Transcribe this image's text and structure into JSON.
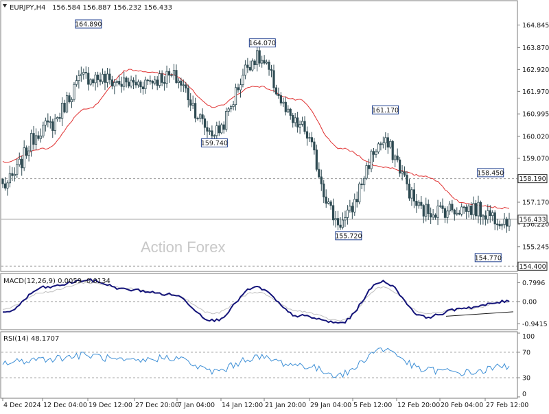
{
  "header": {
    "symbol": "EURJPY,H4",
    "ohlc": "156.584 156.887 156.232 156.433"
  },
  "watermark": "Action Forex",
  "colors": {
    "candles": "#2e4a52",
    "ma": "#e03030",
    "macd": "#14147a",
    "macd_signal": "#c0c0c0",
    "rsi": "#3d8fd6",
    "grid": "#9a9a9a",
    "frame": "#7a7a7a",
    "label_border": "#1f3f8f"
  },
  "chart_data": [
    {
      "type": "candlestick",
      "panel": "price",
      "ylim": [
        154.29,
        165.81
      ],
      "y_ticks": [
        "164.845",
        "163.870",
        "162.920",
        "161.970",
        "160.995",
        "160.020",
        "159.070",
        "158.190",
        "157.170",
        "156.220",
        "155.245",
        "154.400"
      ],
      "x_ticks": [
        "4 Dec 2024",
        "12 Dec 04:00",
        "19 Dec 12:00",
        "27 Dec 20:00",
        "7 Jan 04:00",
        "14 Jan 12:00",
        "21 Jan 20:00",
        "29 Jan 04:00",
        "5 Feb 12:00",
        "12 Feb 20:00",
        "20 Feb 04:00",
        "27 Feb 12:00"
      ],
      "pivot_points": [
        {
          "time": "4 Dec 2024",
          "close": 157.9
        },
        {
          "time": "12 Dec 04:00",
          "close": 160.4
        },
        {
          "time": "19 Dec 12:00",
          "close": 162.6
        },
        {
          "time": "27 Dec 20:00",
          "close": 162.3
        },
        {
          "time": "7 Jan 04:00",
          "close": 162.6
        },
        {
          "time": "14 Jan 12:00",
          "close": 160.2
        },
        {
          "time": "21 Jan 20:00",
          "close": 163.4
        },
        {
          "time": "29 Jan 04:00",
          "close": 160.5
        },
        {
          "time": "5 Feb 12:00",
          "close": 156.3
        },
        {
          "time": "12 Feb 20:00",
          "close": 159.7
        },
        {
          "time": "20 Feb 04:00",
          "close": 156.8
        },
        {
          "time": "27 Feb 12:00",
          "close": 156.9
        },
        {
          "time": "last",
          "close": 156.433
        }
      ],
      "ma_pivots": [
        158.9,
        159.5,
        161.2,
        162.9,
        162.7,
        161.3,
        162.2,
        161.6,
        159.5,
        158.7,
        158.3,
        157.1,
        156.9
      ],
      "extremes": [
        {
          "label": "164.890",
          "value": 164.89,
          "at": "19 Dec 12:00",
          "side": "left",
          "kind": "high"
        },
        {
          "label": "159.740",
          "value": 159.74,
          "at": "14 Jan 12:00",
          "side": "left",
          "kind": "low"
        },
        {
          "label": "164.070",
          "value": 164.07,
          "at": "21 Jan 20:00",
          "side": "left",
          "kind": "high"
        },
        {
          "label": "155.720",
          "value": 155.72,
          "at": "5 Feb 12:00",
          "side": "left",
          "kind": "low"
        },
        {
          "label": "161.170",
          "value": 161.17,
          "at": "12 Feb 20:00",
          "side": "left",
          "kind": "high"
        },
        {
          "label": "158.450",
          "value": 158.45,
          "at": "27 Feb 12:00",
          "side": "left",
          "kind": "high"
        },
        {
          "label": "154.770",
          "value": 154.77,
          "at": "27 Feb 12:00",
          "side": "left",
          "kind": "low"
        }
      ],
      "levels": [
        {
          "label": "158.190",
          "value": 158.19,
          "style": "dashed"
        },
        {
          "label": "154.400",
          "value": 154.4,
          "style": "dashed"
        },
        {
          "label": "156.433",
          "value": 156.433,
          "style": "solid"
        }
      ]
    },
    {
      "type": "line",
      "panel": "macd",
      "title": "MACD(12,26,9) 0.0059 -0.0134",
      "ylim": [
        -1.1,
        1.1
      ],
      "y_ticks": [
        "0.7996",
        "0.00",
        "-0.9415"
      ],
      "macd_pivots": [
        -0.5,
        0.6,
        0.9,
        0.5,
        0.3,
        -0.8,
        0.6,
        -0.6,
        -0.9,
        0.85,
        -0.65,
        -0.25,
        0.0059
      ],
      "signal_pivots": [
        -0.3,
        0.4,
        0.8,
        0.55,
        0.3,
        -0.5,
        0.4,
        -0.4,
        -0.8,
        0.6,
        -0.5,
        -0.3,
        -0.0134
      ],
      "trendline": [
        -0.62,
        -0.43
      ]
    },
    {
      "type": "line",
      "panel": "rsi",
      "title": "RSI(14) 48.1707",
      "ylim": [
        0,
        100
      ],
      "y_ticks": [
        "100",
        "70",
        "30",
        "0"
      ],
      "guides": [
        70,
        30
      ],
      "rsi_pivots": [
        53,
        60,
        65,
        55,
        62,
        40,
        62,
        50,
        35,
        75,
        42,
        38,
        48.1707
      ]
    }
  ]
}
